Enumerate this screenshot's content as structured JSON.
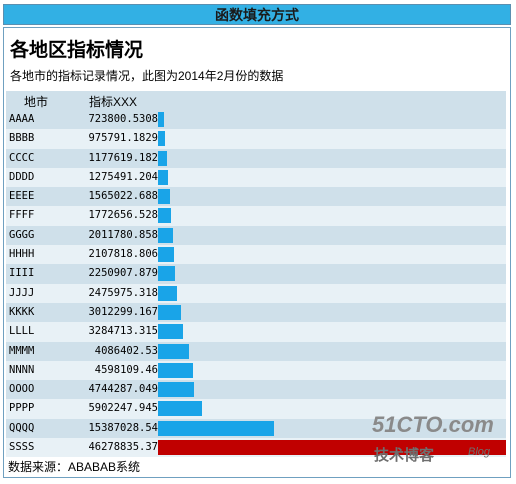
{
  "banner": {
    "title": "函数填充方式"
  },
  "panel": {
    "title": "各地区指标情况",
    "subtitle": "各地市的指标记录情况，此图为2014年2月份的数据",
    "header": {
      "col_city": "地市",
      "col_metric": "指标XXX"
    },
    "source": "数据来源：ABABAB系统"
  },
  "colors": {
    "banner": "#32b0e4",
    "bar": "#19a4e8",
    "bar_max": "#c00000",
    "row_odd": "#cfe0ea",
    "row_even": "#e8f1f6"
  },
  "chart_data": {
    "type": "bar",
    "orientation": "horizontal",
    "categories": [
      "AAAA",
      "BBBB",
      "CCCC",
      "DDDD",
      "EEEE",
      "FFFF",
      "GGGG",
      "HHHH",
      "IIII",
      "JJJJ",
      "KKKK",
      "LLLL",
      "MMMM",
      "NNNN",
      "OOOO",
      "PPPP",
      "QQQQ",
      "SSSS"
    ],
    "labels": [
      "723800.5308",
      "975791.1829",
      "1177619.182",
      "1275491.204",
      "1565022.688",
      "1772656.528",
      "2011780.858",
      "2107818.806",
      "2250907.879",
      "2475975.318",
      "3012299.167",
      "3284713.315",
      "4086402.53",
      "4598109.46",
      "4744287.049",
      "5902247.945",
      "15387028.54",
      "46278835.37"
    ],
    "values": [
      723800.5308,
      975791.1829,
      1177619.182,
      1275491.204,
      1565022.688,
      1772656.528,
      2011780.858,
      2107818.806,
      2250907.879,
      2475975.318,
      3012299.167,
      3284713.315,
      4086402.53,
      4598109.46,
      4744287.049,
      5902247.945,
      15387028.54,
      46278835.37
    ]
  },
  "watermark": {
    "line1": "51CTO.com",
    "line2": "技术博客",
    "line3": "Blog"
  }
}
